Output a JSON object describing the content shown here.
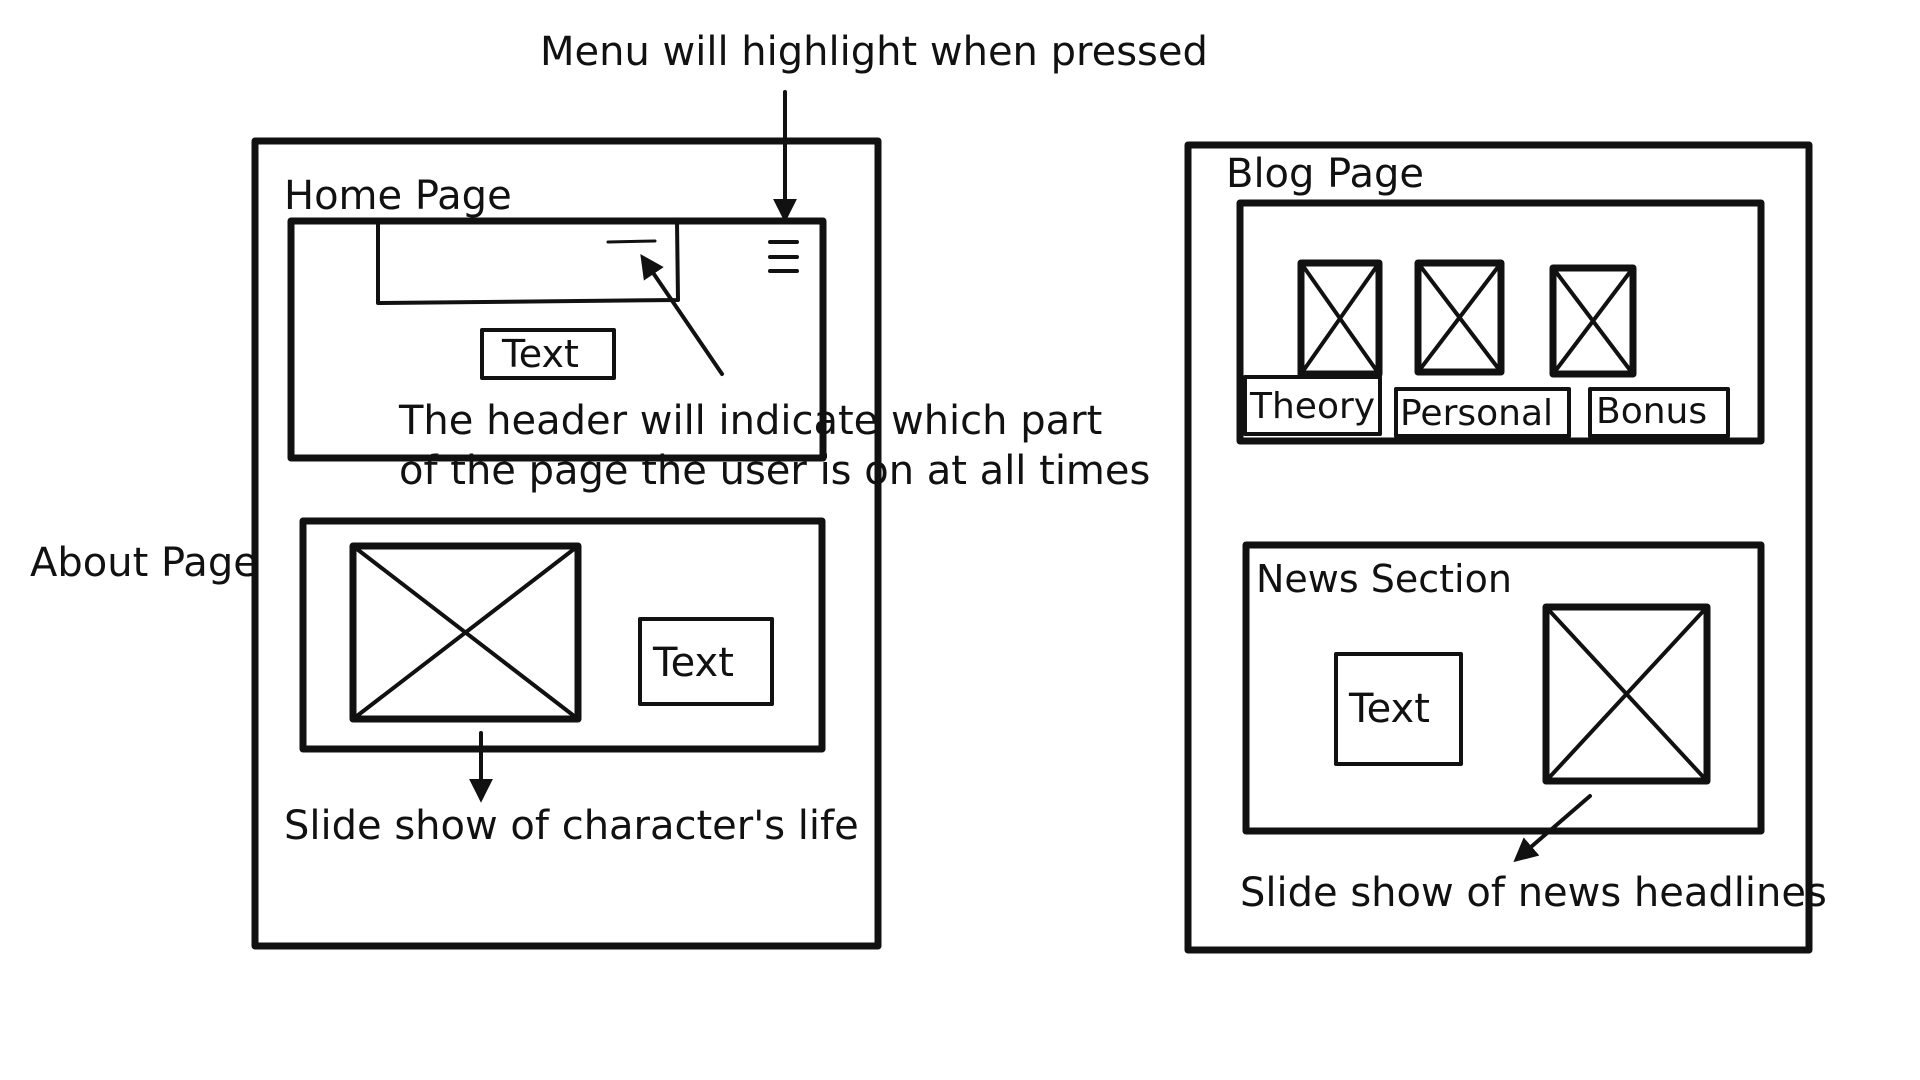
{
  "annotations": {
    "menu_note": "Menu will highlight when pressed",
    "header_note_line1": "The header will indicate which part",
    "header_note_line2": "of the page the user is on at all times",
    "about_slideshow_note": "Slide show of character's life",
    "news_slideshow_note": "Slide show of news headlines"
  },
  "home_wireframe": {
    "title": "Home Page",
    "header_text_box": "Text",
    "menu_icon": "hamburger-menu-icon"
  },
  "about_section": {
    "title": "About Page",
    "text_box": "Text",
    "image_icon": "image-placeholder-icon"
  },
  "blog_wireframe": {
    "title": "Blog Page",
    "categories": [
      {
        "label": "Theory",
        "icon": "image-placeholder-icon"
      },
      {
        "label": "Personal",
        "icon": "image-placeholder-icon"
      },
      {
        "label": "Bonus",
        "icon": "image-placeholder-icon"
      }
    ]
  },
  "news_section": {
    "title": "News Section",
    "text_box": "Text",
    "image_icon": "image-placeholder-icon"
  },
  "colors": {
    "ink": "#111111",
    "paper": "#ffffff"
  }
}
